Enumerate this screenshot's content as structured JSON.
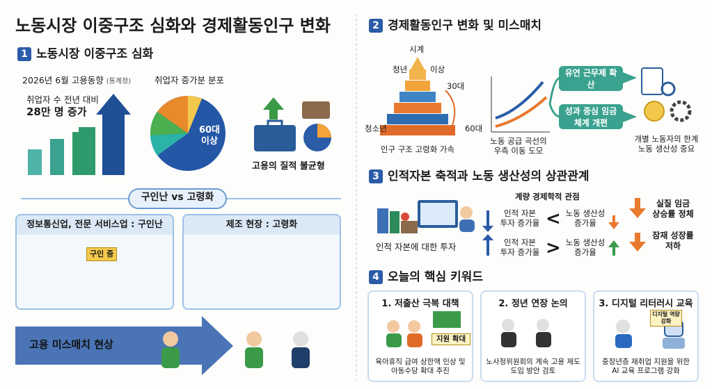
{
  "title": "노동시장 이중구조 심화와 경제활동인구 변화",
  "section1": {
    "number": "1",
    "title": "노동시장 이중구조 심화",
    "release": "2026년 6월 고용동향",
    "source": "(통계청)",
    "growth_line1": "취업자 수 전년 대비",
    "growth_line2": "28만 명 증가",
    "pie_title": "취업자 증가분 분포",
    "pie_label": "60대 이상",
    "quality": "고용의 질적 불균형",
    "versus": "구인난 vs 고령화",
    "left_panel": {
      "title": "정보통신업, 전문 서비스업 : 구인난",
      "sign": "구인 중"
    },
    "right_panel": {
      "title": "제조 현장 : 고령화"
    },
    "mismatch": "고용 미스매치 현상"
  },
  "section2": {
    "number": "2",
    "title": "경제활동인구 변화 및 미스매치",
    "pyramid": {
      "top": "시계",
      "youth": "청년",
      "over": "이상",
      "thirties": "30대",
      "teen": "청소년",
      "sixties": "60대",
      "caption": "인구 구조 고령화 가속"
    },
    "curve_caption": "노동 공급 곡선의 우측 이동 도모",
    "branch1": "유연 근무제 확산",
    "branch2": "성과 중심 임금 체계 개편",
    "conclusion": "개별 노동자의 한계 노동 생산성 중요"
  },
  "section3": {
    "number": "3",
    "title": "인적자본 축적과 노동 생산성의 상관관계",
    "perspective": "계량 경제학적 관점",
    "investment": "인적 자본에 대한 투자",
    "rows": [
      {
        "left": "인적 자본 투자 증가율",
        "op": "<",
        "right": "노동 생산성 증가율",
        "result": "실질 임금 상승률 정체"
      },
      {
        "left": "인적 자본 투자 증가율",
        "op": ">",
        "right": "노동 생산성 증가율",
        "result": "잠재 성장률 저하"
      }
    ]
  },
  "section4": {
    "number": "4",
    "title": "오늘의 핵심 키워드",
    "cards": [
      {
        "title": "1. 저출산 극복 대책",
        "sign": "지원 확대",
        "text": "육아휴직 급여 상한액 인상 및 아동수당 확대 추진"
      },
      {
        "title": "2. 정년 연장 논의",
        "text": "노사정위원회의 계속 고용 제도 도입 방안 검토"
      },
      {
        "title": "3. 디지털 리터러시 교육",
        "sign": "디지털 역량 강화",
        "text": "중장년층 재취업 지원을 위한 AI 교육 프로그램 강화"
      }
    ]
  }
}
